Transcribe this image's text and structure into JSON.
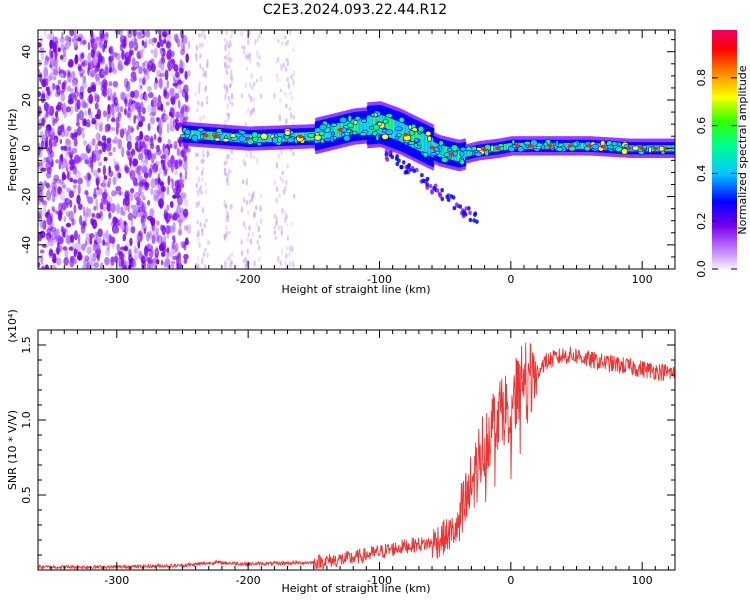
{
  "title": "C2E3.2024.093.22.44.R12",
  "chart_data": [
    {
      "type": "heatmap",
      "xlabel": "Height of straight line (km)",
      "ylabel": "Frequency (Hz)",
      "xlim": [
        -360,
        125
      ],
      "ylim": [
        -50,
        49
      ],
      "xticks": [
        -300,
        -200,
        -100,
        0,
        100
      ],
      "yticks": [
        -40,
        -20,
        0,
        20,
        40
      ],
      "colorbar": {
        "label": "Normalized spectral amplitude",
        "range": [
          0,
          1
        ],
        "ticks": [
          0.0,
          0.2,
          0.4,
          0.6,
          0.8
        ]
      },
      "ridge": {
        "x": [
          -250,
          -200,
          -150,
          -120,
          -100,
          -85,
          -70,
          -55,
          -40,
          -25,
          -10,
          0,
          30,
          60,
          90,
          125
        ],
        "y": [
          6,
          4,
          5,
          9,
          10,
          7,
          3,
          -1,
          -3,
          -1,
          0,
          1,
          1,
          1,
          0,
          0
        ]
      }
    },
    {
      "type": "line",
      "xlabel": "Height of straight line (km)",
      "ylabel": "SNR (10 * V/V)",
      "y_multiplier": "(x10⁴)",
      "xlim": [
        -360,
        125
      ],
      "ylim": [
        0,
        1.6
      ],
      "xticks": [
        -300,
        -200,
        -100,
        0,
        100
      ],
      "yticks": [
        0.5,
        1.0,
        1.5
      ],
      "ytick_labels": [
        "0.5",
        "1.0",
        "1.5"
      ],
      "color": "#ee3333",
      "series": [
        {
          "x": [
            -360,
            -300,
            -250,
            -225,
            -200,
            -150,
            -120,
            -100,
            -80,
            -60,
            -50,
            -40,
            -30,
            -25,
            -20,
            -15,
            -10,
            -5,
            0,
            5,
            10,
            15,
            20,
            25,
            30,
            40,
            50,
            60,
            80,
            100,
            125
          ],
          "y": [
            0.02,
            0.02,
            0.03,
            0.05,
            0.04,
            0.05,
            0.08,
            0.12,
            0.16,
            0.18,
            0.22,
            0.28,
            0.55,
            0.72,
            0.85,
            0.95,
            1.05,
            1.08,
            1.1,
            1.2,
            1.3,
            1.26,
            1.32,
            1.38,
            1.4,
            1.43,
            1.43,
            1.4,
            1.37,
            1.34,
            1.31
          ]
        }
      ]
    }
  ]
}
